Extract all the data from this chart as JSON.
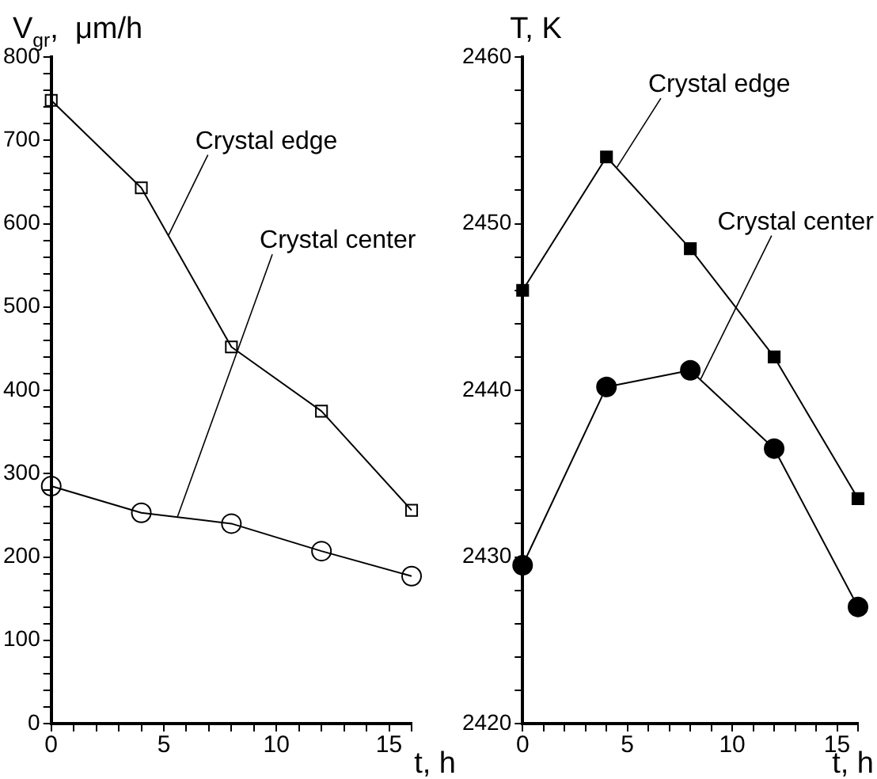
{
  "chart_data": [
    {
      "type": "line",
      "ylabel": "V$_{gr}$,  μm/h",
      "xlabel": "t, h",
      "x": [
        0,
        4,
        8,
        12,
        16
      ],
      "xlim": [
        0,
        16
      ],
      "xticks": [
        0,
        {
          "value": 1,
          "label": null
        },
        {
          "value": 2,
          "label": null
        },
        {
          "value": 3,
          "label": null
        },
        {
          "value": 4,
          "label": null
        },
        5,
        {
          "value": 6,
          "label": null
        },
        {
          "value": 7,
          "label": null
        },
        {
          "value": 8,
          "label": null
        },
        {
          "value": 9,
          "label": null
        },
        10,
        {
          "value": 11,
          "label": null
        },
        {
          "value": 12,
          "label": null
        },
        {
          "value": 13,
          "label": null
        },
        {
          "value": 14,
          "label": null
        },
        15,
        {
          "value": 16,
          "label": null
        }
      ],
      "ylim": [
        0,
        800
      ],
      "yticks": [
        0,
        {
          "value": 20,
          "label": null
        },
        {
          "value": 40,
          "label": null
        },
        {
          "value": 60,
          "label": null
        },
        {
          "value": 80,
          "label": null
        },
        100,
        {
          "value": 120,
          "label": null
        },
        {
          "value": 140,
          "label": null
        },
        {
          "value": 160,
          "label": null
        },
        {
          "value": 180,
          "label": null
        },
        200,
        {
          "value": 220,
          "label": null
        },
        {
          "value": 240,
          "label": null
        },
        {
          "value": 260,
          "label": null
        },
        {
          "value": 280,
          "label": null
        },
        300,
        {
          "value": 320,
          "label": null
        },
        {
          "value": 340,
          "label": null
        },
        {
          "value": 360,
          "label": null
        },
        {
          "value": 380,
          "label": null
        },
        400,
        {
          "value": 420,
          "label": null
        },
        {
          "value": 440,
          "label": null
        },
        {
          "value": 460,
          "label": null
        },
        {
          "value": 480,
          "label": null
        },
        500,
        {
          "value": 520,
          "label": null
        },
        {
          "value": 540,
          "label": null
        },
        {
          "value": 560,
          "label": null
        },
        {
          "value": 580,
          "label": null
        },
        600,
        {
          "value": 620,
          "label": null
        },
        {
          "value": 640,
          "label": null
        },
        {
          "value": 660,
          "label": null
        },
        {
          "value": 680,
          "label": null
        },
        700,
        {
          "value": 720,
          "label": null
        },
        {
          "value": 740,
          "label": null
        },
        {
          "value": 760,
          "label": null
        },
        {
          "value": 780,
          "label": null
        },
        800
      ],
      "grid": false,
      "legend": false,
      "series": [
        {
          "name": "Crystal edge",
          "color": "#000000",
          "marker": "square",
          "values": [
            748,
            643,
            452,
            375,
            256
          ]
        },
        {
          "name": "Crystal center",
          "color": "#000000",
          "marker": "circle",
          "values": [
            285,
            253,
            240,
            207,
            177
          ]
        }
      ]
    },
    {
      "type": "line",
      "ylabel": "T, K",
      "xlabel": "t, h",
      "x": [
        0,
        4,
        8,
        12,
        16
      ],
      "xlim": [
        0,
        16
      ],
      "xticks": [
        0,
        {
          "value": 1,
          "label": null
        },
        {
          "value": 2,
          "label": null
        },
        {
          "value": 3,
          "label": null
        },
        {
          "value": 4,
          "label": null
        },
        5,
        {
          "value": 6,
          "label": null
        },
        {
          "value": 7,
          "label": null
        },
        {
          "value": 8,
          "label": null
        },
        {
          "value": 9,
          "label": null
        },
        10,
        {
          "value": 11,
          "label": null
        },
        {
          "value": 12,
          "label": null
        },
        {
          "value": 13,
          "label": null
        },
        {
          "value": 14,
          "label": null
        },
        15,
        {
          "value": 16,
          "label": null
        }
      ],
      "ylim": [
        2420,
        2460
      ],
      "yticks": [
        2420,
        {
          "value": 2422,
          "label": null
        },
        {
          "value": 2424,
          "label": null
        },
        {
          "value": 2426,
          "label": null
        },
        {
          "value": 2428,
          "label": null
        },
        2430,
        {
          "value": 2432,
          "label": null
        },
        {
          "value": 2434,
          "label": null
        },
        {
          "value": 2436,
          "label": null
        },
        {
          "value": 2438,
          "label": null
        },
        2440,
        {
          "value": 2442,
          "label": null
        },
        {
          "value": 2444,
          "label": null
        },
        {
          "value": 2446,
          "label": null
        },
        {
          "value": 2448,
          "label": null
        },
        2450,
        {
          "value": 2452,
          "label": null
        },
        {
          "value": 2454,
          "label": null
        },
        {
          "value": 2456,
          "label": null
        },
        {
          "value": 2458,
          "label": null
        },
        2460
      ],
      "grid": false,
      "legend": false,
      "series": [
        {
          "name": "Crystal edge",
          "color": "#000000",
          "marker": "square",
          "values": [
            2446,
            2454,
            2448.5,
            2442,
            2433.5
          ]
        },
        {
          "name": "Crystal center",
          "color": "#000000",
          "marker": "circle",
          "values": [
            2429.5,
            2440.2,
            2441.2,
            2436.5,
            2427
          ]
        }
      ]
    }
  ]
}
